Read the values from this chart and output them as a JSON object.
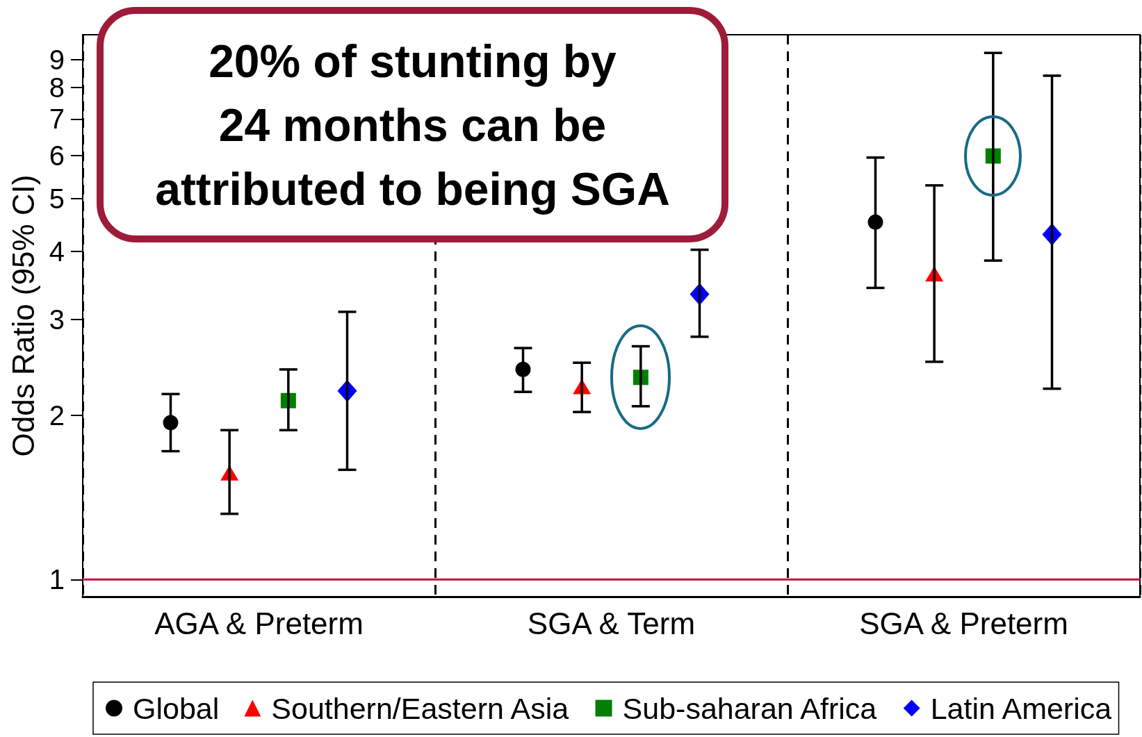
{
  "chart_data": {
    "type": "scatter",
    "categories": [
      "AGA & Preterm",
      "SGA & Term",
      "SGA & Preterm"
    ],
    "ylabel": "Odds Ratio (95% CI)",
    "log": true,
    "ylim": [
      0.93,
      10
    ],
    "yticks": [
      1,
      2,
      3,
      4,
      5,
      6,
      7,
      8,
      9
    ],
    "grid": "x",
    "legend": "bottom",
    "annotations": [
      "20% of stunting by\n24 months can be\nattributed to being SGA"
    ],
    "ref_lines": [
      {
        "axis": "y",
        "value": 1,
        "color": "#c8103e"
      }
    ],
    "series": [
      {
        "name": "Global",
        "color": "#000000",
        "marker": "circle",
        "values": [
          1.94,
          2.43,
          4.53
        ],
        "errors": [
          [
            1.72,
            2.19
          ],
          [
            2.21,
            2.66
          ],
          [
            3.43,
            5.95
          ]
        ]
      },
      {
        "name": "Southern/Eastern Asia",
        "color": "#ff0000",
        "marker": "triangle",
        "values": [
          1.57,
          2.26,
          3.64
        ],
        "errors": [
          [
            1.32,
            1.88
          ],
          [
            2.03,
            2.5
          ],
          [
            2.51,
            5.29
          ]
        ]
      },
      {
        "name": "Sub-saharan Africa",
        "color": "#008000",
        "marker": "square",
        "values": [
          2.13,
          2.35,
          5.99
        ],
        "errors": [
          [
            1.88,
            2.43
          ],
          [
            2.08,
            2.68
          ],
          [
            3.85,
            9.26
          ]
        ]
      },
      {
        "name": "Latin America",
        "color": "#0000ff",
        "marker": "diamond",
        "values": [
          2.22,
          3.34,
          4.3
        ],
        "errors": [
          [
            1.59,
            3.1
          ],
          [
            2.79,
            4.03
          ],
          [
            2.24,
            8.41
          ]
        ]
      }
    ]
  }
}
